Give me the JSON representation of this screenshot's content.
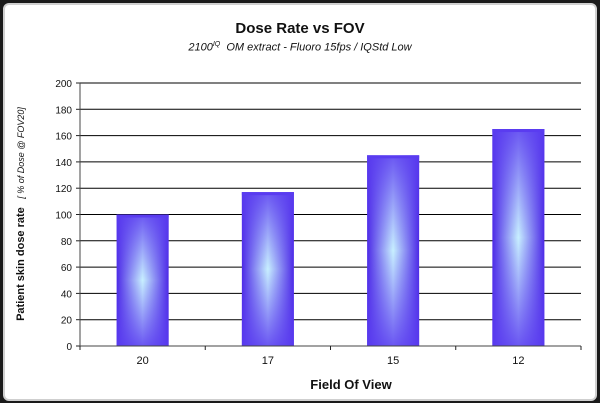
{
  "chart_data": {
    "type": "bar",
    "title": "Dose Rate vs FOV",
    "subtitle": {
      "model": "2100",
      "model_sup": "IQ",
      "rest": "OM extract - Fluoro 15fps / IQStd Low"
    },
    "xlabel": "Field Of View",
    "ylabel": "Patient skin dose rate",
    "ylabel_unit": "[ % of Dose @ FOV20]",
    "categories": [
      "20",
      "17",
      "15",
      "12"
    ],
    "values": [
      100,
      117,
      145,
      165
    ],
    "ylim": [
      0,
      200
    ],
    "yticks": [
      0,
      20,
      40,
      60,
      80,
      100,
      120,
      140,
      160,
      180,
      200
    ],
    "grid": true,
    "bar_color": "#5a3cf0",
    "bar_highlight": "#c8f0ff",
    "gridline_color": "#000000"
  }
}
